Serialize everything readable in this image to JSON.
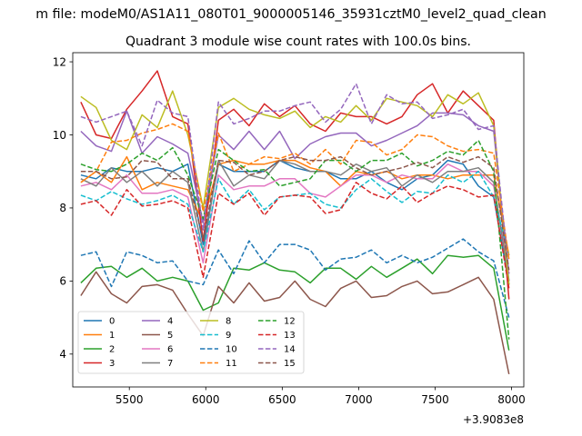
{
  "figure": {
    "suptitle": "m file: modeM0/AS1A11_080T01_9000005146_35931cztM0_level2_quad_clean"
  },
  "chart_data": {
    "type": "line",
    "title": "Quadrant 3 module wise count rates with 100.0s bins.",
    "xlabel": "",
    "ylabel": "",
    "x_offset_label": "+3.9083e8",
    "xlim": [
      5130,
      8080
    ],
    "ylim": [
      3.1,
      12.25
    ],
    "xticks": [
      5500,
      6000,
      6500,
      7000,
      7500,
      8000
    ],
    "xtick_labels": [
      "5500",
      "6000",
      "6500",
      "7000",
      "7500",
      "8000"
    ],
    "yticks": [
      4,
      6,
      8,
      10,
      12
    ],
    "ytick_labels": [
      "4",
      "6",
      "8",
      "10",
      "12"
    ],
    "legend_position": "lower-left",
    "legend_columns": 4,
    "x": [
      5183,
      5283,
      5383,
      5483,
      5583,
      5683,
      5783,
      5883,
      5983,
      6083,
      6183,
      6283,
      6383,
      6483,
      6583,
      6683,
      6783,
      6883,
      6983,
      7083,
      7183,
      7283,
      7383,
      7483,
      7583,
      7683,
      7783,
      7883,
      7983
    ],
    "series": [
      {
        "name": "0",
        "color": "#1f77b4",
        "dash": "solid",
        "values": [
          8.9,
          8.8,
          9.1,
          9.0,
          9.0,
          9.1,
          9.0,
          9.2,
          7.0,
          9.2,
          9.0,
          9.0,
          9.0,
          9.3,
          9.1,
          9.0,
          9.0,
          8.8,
          8.8,
          9.0,
          8.7,
          8.5,
          8.8,
          8.9,
          9.3,
          9.2,
          8.6,
          8.3,
          5.9
        ]
      },
      {
        "name": "1",
        "color": "#ff7f0e",
        "dash": "solid",
        "values": [
          8.7,
          9.0,
          8.7,
          9.4,
          8.5,
          8.7,
          8.6,
          8.5,
          7.6,
          9.2,
          9.3,
          9.2,
          9.2,
          9.3,
          9.3,
          9.1,
          9.0,
          8.6,
          9.0,
          8.9,
          9.0,
          8.8,
          8.9,
          8.9,
          8.8,
          8.9,
          8.9,
          8.9,
          6.7
        ]
      },
      {
        "name": "2",
        "color": "#2ca02c",
        "dash": "solid",
        "values": [
          5.95,
          6.35,
          6.4,
          6.1,
          6.35,
          6.0,
          6.1,
          6.0,
          5.2,
          5.4,
          6.35,
          6.3,
          6.5,
          6.3,
          6.25,
          5.95,
          6.35,
          6.35,
          6.05,
          6.4,
          6.1,
          6.35,
          6.6,
          6.2,
          6.7,
          6.65,
          6.7,
          6.35,
          4.1
        ]
      },
      {
        "name": "3",
        "color": "#d62728",
        "dash": "solid",
        "values": [
          10.9,
          10.0,
          9.9,
          10.7,
          11.2,
          11.75,
          10.5,
          10.3,
          7.1,
          10.4,
          10.7,
          10.25,
          10.85,
          10.5,
          10.8,
          10.3,
          10.1,
          10.6,
          10.5,
          10.5,
          10.3,
          10.5,
          11.1,
          11.4,
          10.6,
          11.2,
          10.8,
          10.4,
          5.5
        ]
      },
      {
        "name": "4",
        "color": "#9467bd",
        "dash": "solid",
        "values": [
          10.1,
          9.7,
          9.55,
          10.65,
          9.5,
          9.95,
          9.75,
          9.5,
          7.6,
          10.0,
          9.6,
          10.1,
          9.6,
          10.1,
          9.35,
          9.75,
          9.95,
          10.05,
          10.05,
          9.7,
          9.85,
          10.05,
          10.25,
          10.6,
          10.6,
          10.55,
          10.25,
          10.1,
          6.0
        ]
      },
      {
        "name": "5",
        "color": "#8c564b",
        "dash": "solid",
        "values": [
          5.6,
          6.25,
          5.65,
          5.4,
          5.85,
          5.9,
          5.75,
          5.1,
          4.5,
          5.85,
          5.4,
          5.95,
          5.45,
          5.55,
          6.0,
          5.5,
          5.3,
          5.8,
          6.0,
          5.55,
          5.6,
          5.85,
          6.0,
          5.65,
          5.7,
          5.9,
          6.1,
          5.5,
          3.45
        ]
      },
      {
        "name": "6",
        "color": "#e377c2",
        "dash": "solid",
        "values": [
          8.6,
          8.7,
          8.5,
          8.9,
          8.4,
          8.4,
          8.5,
          8.3,
          6.5,
          8.9,
          8.5,
          8.6,
          8.6,
          8.8,
          8.8,
          8.4,
          8.3,
          8.6,
          8.9,
          8.9,
          8.7,
          8.9,
          8.8,
          8.8,
          9.2,
          9.0,
          9.0,
          8.6,
          6.2
        ]
      },
      {
        "name": "7",
        "color": "#7f7f7f",
        "dash": "solid",
        "values": [
          8.8,
          8.6,
          9.1,
          8.7,
          9.0,
          8.6,
          9.0,
          8.7,
          6.8,
          9.3,
          8.6,
          8.9,
          8.8,
          9.3,
          9.2,
          9.0,
          9.0,
          8.9,
          9.2,
          9.0,
          9.1,
          8.6,
          8.9,
          8.7,
          9.0,
          9.0,
          9.1,
          8.7,
          6.0
        ]
      },
      {
        "name": "8",
        "color": "#bcbd22",
        "dash": "solid",
        "values": [
          11.05,
          10.75,
          9.85,
          9.6,
          10.55,
          10.2,
          11.2,
          10.0,
          8.0,
          10.75,
          11.0,
          10.7,
          10.55,
          10.45,
          10.65,
          10.2,
          10.5,
          10.35,
          10.8,
          10.4,
          11.0,
          10.9,
          10.8,
          10.5,
          11.1,
          10.85,
          11.15,
          10.25,
          5.9
        ]
      },
      {
        "name": "9",
        "color": "#17becf",
        "dash": "dashed",
        "values": [
          8.35,
          8.2,
          8.45,
          8.25,
          8.1,
          8.2,
          8.35,
          8.1,
          6.8,
          8.8,
          8.1,
          8.5,
          7.95,
          8.3,
          8.35,
          8.4,
          8.1,
          8.0,
          8.5,
          8.8,
          8.45,
          8.15,
          8.45,
          8.4,
          8.9,
          8.7,
          9.0,
          8.3,
          6.7
        ]
      },
      {
        "name": "10",
        "color": "#1f77b4",
        "dash": "dashed",
        "values": [
          6.7,
          6.8,
          5.85,
          6.8,
          6.7,
          6.5,
          6.55,
          6.0,
          5.9,
          6.85,
          6.2,
          7.1,
          6.5,
          7.0,
          7.0,
          6.85,
          6.3,
          6.6,
          6.65,
          6.85,
          6.5,
          6.7,
          6.5,
          6.65,
          6.9,
          7.15,
          6.8,
          6.55,
          5.0
        ]
      },
      {
        "name": "11",
        "color": "#ff7f0e",
        "dash": "dashed",
        "values": [
          8.7,
          9.0,
          9.8,
          9.85,
          10.05,
          10.15,
          10.3,
          10.1,
          7.9,
          10.05,
          9.0,
          9.2,
          9.4,
          9.35,
          9.5,
          9.2,
          9.6,
          9.2,
          9.85,
          9.8,
          9.45,
          9.6,
          10.0,
          9.95,
          9.7,
          9.55,
          9.6,
          9.5,
          6.6
        ]
      },
      {
        "name": "12",
        "color": "#2ca02c",
        "dash": "dashed",
        "values": [
          9.2,
          9.05,
          9.0,
          9.2,
          9.5,
          9.3,
          9.65,
          8.9,
          7.7,
          9.6,
          9.3,
          9.0,
          9.05,
          8.6,
          8.7,
          8.8,
          9.3,
          9.3,
          9.0,
          9.3,
          9.3,
          9.5,
          9.15,
          9.3,
          9.55,
          9.45,
          9.85,
          9.0,
          4.4
        ]
      },
      {
        "name": "13",
        "color": "#d62728",
        "dash": "dashed",
        "values": [
          8.1,
          8.2,
          7.8,
          8.5,
          8.05,
          8.1,
          8.2,
          8.0,
          6.1,
          8.4,
          8.1,
          8.4,
          7.8,
          8.3,
          8.35,
          8.3,
          7.85,
          7.95,
          8.7,
          8.4,
          8.25,
          8.6,
          8.15,
          8.4,
          8.6,
          8.5,
          8.3,
          8.35,
          5.8
        ]
      },
      {
        "name": "14",
        "color": "#9467bd",
        "dash": "dashed",
        "values": [
          10.5,
          10.35,
          10.5,
          10.65,
          9.7,
          10.95,
          10.6,
          10.5,
          7.4,
          10.9,
          10.3,
          10.45,
          10.65,
          10.65,
          10.8,
          10.9,
          10.35,
          10.7,
          11.4,
          10.3,
          11.1,
          10.85,
          10.9,
          10.45,
          10.55,
          10.7,
          10.15,
          10.25,
          6.2
        ]
      },
      {
        "name": "15",
        "color": "#8c564b",
        "dash": "dashed",
        "values": [
          9.0,
          9.0,
          8.8,
          8.85,
          9.3,
          9.25,
          8.8,
          8.8,
          7.15,
          9.3,
          9.25,
          8.9,
          9.0,
          9.3,
          9.4,
          9.3,
          9.3,
          9.4,
          9.1,
          8.9,
          9.0,
          9.1,
          9.25,
          9.1,
          9.4,
          9.25,
          9.4,
          9.1,
          6.3
        ]
      }
    ]
  }
}
